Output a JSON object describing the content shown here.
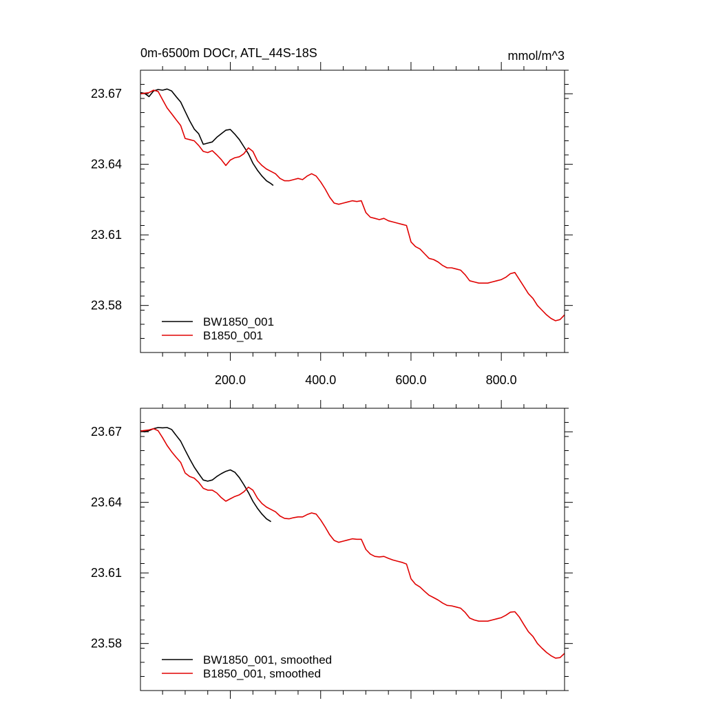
{
  "chart_data": [
    {
      "type": "line",
      "title": "0m-6500m DOCr, ATL_44S-18S",
      "units": "mmol/m^3",
      "xlim": [
        1,
        940
      ],
      "ylim": [
        23.56,
        23.68
      ],
      "y_ticks": [
        {
          "value": 23.58,
          "label": "23.58"
        },
        {
          "value": 23.61,
          "label": "23.61"
        },
        {
          "value": 23.64,
          "label": "23.64"
        },
        {
          "value": 23.67,
          "label": "23.67"
        }
      ],
      "x_ticks": [
        {
          "value": 200,
          "label": "200.0"
        },
        {
          "value": 400,
          "label": "400.0"
        },
        {
          "value": 600,
          "label": "600.0"
        },
        {
          "value": 800,
          "label": "800.0"
        }
      ],
      "legend_position": "bottom-left",
      "series": [
        {
          "name": "BW1850_001",
          "color": "#000000",
          "x": [
            1,
            10,
            20,
            30,
            40,
            50,
            60,
            70,
            80,
            90,
            100,
            110,
            120,
            130,
            140,
            150,
            160,
            170,
            180,
            190,
            200,
            210,
            220,
            230,
            240,
            250,
            260,
            270,
            280,
            290,
            295
          ],
          "y": [
            23.6705,
            23.6702,
            23.6688,
            23.6712,
            23.6718,
            23.6715,
            23.672,
            23.6712,
            23.6688,
            23.6665,
            23.6625,
            23.6585,
            23.655,
            23.653,
            23.6485,
            23.649,
            23.6495,
            23.6515,
            23.653,
            23.6545,
            23.6548,
            23.6528,
            23.6505,
            23.6475,
            23.6445,
            23.6405,
            23.6375,
            23.635,
            23.633,
            23.6318,
            23.631
          ]
        },
        {
          "name": "B1850_001",
          "color": "#e00000",
          "x": [
            1,
            20,
            30,
            40,
            50,
            60,
            70,
            80,
            90,
            100,
            110,
            120,
            130,
            140,
            150,
            160,
            170,
            180,
            190,
            200,
            210,
            220,
            230,
            240,
            250,
            260,
            270,
            280,
            290,
            300,
            310,
            320,
            330,
            340,
            350,
            360,
            370,
            380,
            390,
            400,
            410,
            420,
            430,
            440,
            450,
            460,
            470,
            480,
            490,
            500,
            510,
            520,
            530,
            540,
            550,
            560,
            570,
            580,
            590,
            600,
            610,
            620,
            630,
            640,
            650,
            660,
            670,
            680,
            690,
            700,
            710,
            720,
            730,
            740,
            750,
            760,
            770,
            780,
            790,
            800,
            810,
            820,
            830,
            840,
            850,
            860,
            870,
            880,
            890,
            900,
            910,
            920,
            930,
            940
          ],
          "y": [
            23.67,
            23.6705,
            23.6715,
            23.671,
            23.6675,
            23.664,
            23.6615,
            23.659,
            23.6565,
            23.651,
            23.6505,
            23.65,
            23.648,
            23.6455,
            23.645,
            23.6458,
            23.644,
            23.642,
            23.6395,
            23.6418,
            23.6428,
            23.6432,
            23.6445,
            23.647,
            23.6455,
            23.6415,
            23.6395,
            23.638,
            23.637,
            23.636,
            23.634,
            23.633,
            23.633,
            23.6335,
            23.634,
            23.6335,
            23.635,
            23.636,
            23.635,
            23.6325,
            23.6295,
            23.626,
            23.6235,
            23.623,
            23.6235,
            23.624,
            23.6245,
            23.6242,
            23.6245,
            23.6195,
            23.6175,
            23.617,
            23.6165,
            23.617,
            23.616,
            23.6155,
            23.615,
            23.6145,
            23.614,
            23.607,
            23.605,
            23.604,
            23.602,
            23.6,
            23.5995,
            23.5985,
            23.597,
            23.596,
            23.596,
            23.5955,
            23.595,
            23.593,
            23.5905,
            23.59,
            23.5895,
            23.5895,
            23.5895,
            23.59,
            23.5905,
            23.591,
            23.592,
            23.5935,
            23.594,
            23.591,
            23.588,
            23.585,
            23.583,
            23.58,
            23.578,
            23.576,
            23.5745,
            23.5735,
            23.574,
            23.576
          ]
        }
      ]
    },
    {
      "type": "line",
      "xlim": [
        1,
        940
      ],
      "ylim": [
        23.56,
        23.68
      ],
      "y_ticks": [
        {
          "value": 23.58,
          "label": "23.58"
        },
        {
          "value": 23.61,
          "label": "23.61"
        },
        {
          "value": 23.64,
          "label": "23.64"
        },
        {
          "value": 23.67,
          "label": "23.67"
        }
      ],
      "x_ticks": [],
      "legend_position": "bottom-left",
      "series": [
        {
          "name": "BW1850_001, smoothed",
          "color": "#000000",
          "x": [
            1,
            10,
            20,
            30,
            40,
            50,
            60,
            70,
            80,
            90,
            100,
            110,
            120,
            130,
            140,
            150,
            160,
            170,
            180,
            190,
            200,
            210,
            220,
            230,
            240,
            250,
            260,
            270,
            280,
            290
          ],
          "y": [
            23.6705,
            23.67,
            23.6705,
            23.6713,
            23.6718,
            23.6717,
            23.6718,
            23.671,
            23.6685,
            23.666,
            23.6622,
            23.6585,
            23.655,
            23.6522,
            23.6495,
            23.649,
            23.6495,
            23.651,
            23.6522,
            23.6532,
            23.6538,
            23.6528,
            23.6505,
            23.6475,
            23.6442,
            23.6405,
            23.6375,
            23.635,
            23.633,
            23.6318
          ]
        },
        {
          "name": "B1850_001, smoothed",
          "color": "#e00000",
          "x": [
            1,
            20,
            30,
            40,
            50,
            60,
            70,
            80,
            90,
            100,
            110,
            120,
            130,
            140,
            150,
            160,
            170,
            180,
            190,
            200,
            210,
            220,
            230,
            240,
            250,
            260,
            270,
            280,
            290,
            300,
            310,
            320,
            330,
            340,
            350,
            360,
            370,
            380,
            390,
            400,
            410,
            420,
            430,
            440,
            450,
            460,
            470,
            480,
            490,
            500,
            510,
            520,
            530,
            540,
            550,
            560,
            570,
            580,
            590,
            600,
            610,
            620,
            630,
            640,
            650,
            660,
            670,
            680,
            690,
            700,
            710,
            720,
            730,
            740,
            750,
            760,
            770,
            780,
            790,
            800,
            810,
            820,
            830,
            840,
            850,
            860,
            870,
            880,
            890,
            900,
            910,
            920,
            930,
            940
          ],
          "y": [
            23.6703,
            23.6708,
            23.6713,
            23.6705,
            23.6675,
            23.6642,
            23.6615,
            23.6592,
            23.657,
            23.6525,
            23.651,
            23.6503,
            23.6485,
            23.646,
            23.6452,
            23.6452,
            23.644,
            23.642,
            23.6405,
            23.6415,
            23.6425,
            23.6432,
            23.6445,
            23.6465,
            23.6452,
            23.6418,
            23.6395,
            23.638,
            23.637,
            23.636,
            23.6342,
            23.6332,
            23.633,
            23.6335,
            23.6338,
            23.6338,
            23.6348,
            23.6355,
            23.635,
            23.6325,
            23.6295,
            23.6262,
            23.6238,
            23.623,
            23.6235,
            23.624,
            23.6245,
            23.6243,
            23.6243,
            23.62,
            23.618,
            23.617,
            23.6168,
            23.617,
            23.6162,
            23.6155,
            23.615,
            23.6145,
            23.6138,
            23.6075,
            23.6052,
            23.604,
            23.6022,
            23.6005,
            23.5995,
            23.5985,
            23.5972,
            23.5962,
            23.596,
            23.5955,
            23.595,
            23.5932,
            23.5908,
            23.59,
            23.5895,
            23.5895,
            23.5895,
            23.59,
            23.5905,
            23.591,
            23.592,
            23.5933,
            23.5935,
            23.5912,
            23.588,
            23.585,
            23.583,
            23.58,
            23.578,
            23.5762,
            23.5748,
            23.5738,
            23.574,
            23.5758
          ]
        }
      ]
    }
  ]
}
